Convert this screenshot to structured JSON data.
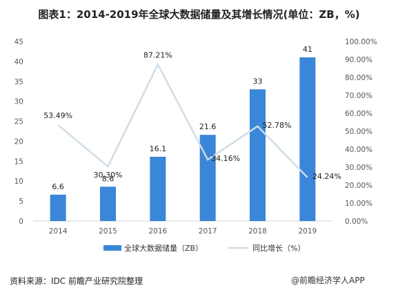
{
  "title": "图表1：2014-2019年全球大数据储量及其增长情况(单位：ZB，%)",
  "source": "资料来源：IDC 前瞻产业研究院整理",
  "watermark": "@前瞻经济学人APP",
  "chart_data": {
    "type": "bar",
    "categories": [
      "2014",
      "2015",
      "2016",
      "2017",
      "2018",
      "2019"
    ],
    "series": [
      {
        "name": "全球大数据储量（ZB）",
        "type": "bar",
        "axis": "left",
        "values": [
          6.6,
          8.6,
          16.1,
          21.6,
          33,
          41
        ],
        "labels": [
          "6.6",
          "8.6",
          "16.1",
          "21.6",
          "33",
          "41"
        ],
        "color": "#3a86d8"
      },
      {
        "name": "同比增长（%）",
        "type": "line",
        "axis": "right",
        "values": [
          53.49,
          30.3,
          87.21,
          34.16,
          52.78,
          24.24
        ],
        "labels": [
          "53.49%",
          "30.30%",
          "87.21%",
          "34.16%",
          "52.78%",
          "24.24%"
        ],
        "color": "#cfdde6"
      }
    ],
    "y_left": {
      "lim": [
        0,
        45
      ],
      "ticks": [
        "0",
        "5",
        "10",
        "15",
        "20",
        "25",
        "30",
        "35",
        "40",
        "45"
      ]
    },
    "y_right": {
      "lim": [
        0,
        100
      ],
      "ticks": [
        "0.00%",
        "10.00%",
        "20.00%",
        "30.00%",
        "40.00%",
        "50.00%",
        "60.00%",
        "70.00%",
        "80.00%",
        "90.00%",
        "100.00%"
      ]
    },
    "grid": false,
    "legend": "bottom"
  }
}
